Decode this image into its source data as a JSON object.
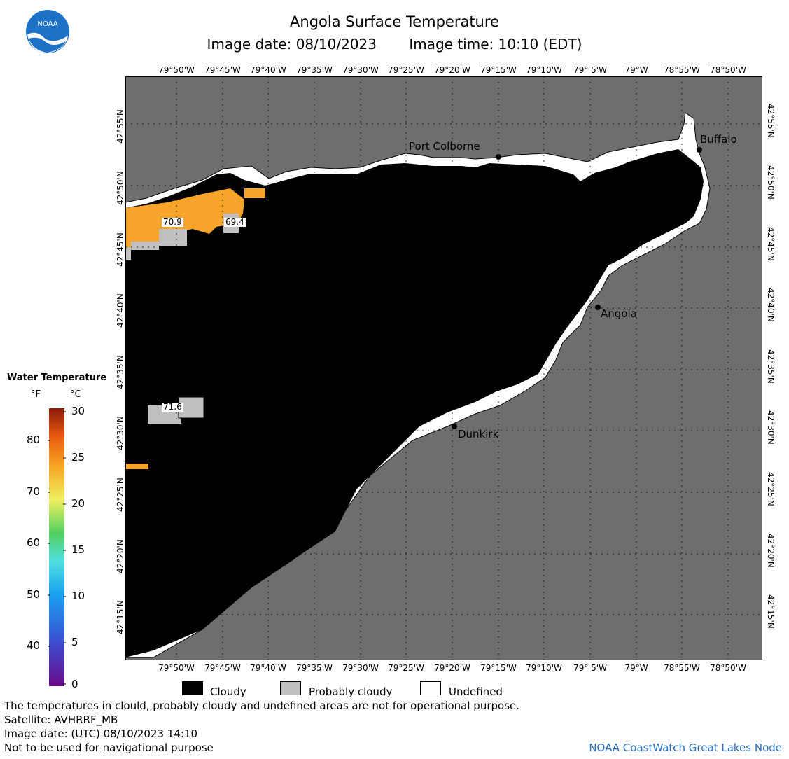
{
  "header": {
    "title": "Angola Surface Temperature",
    "image_date": "Image date: 08/10/2023",
    "image_time": "Image time: 10:10 (EDT)"
  },
  "logo": {
    "text": "NOAA",
    "icon": "noaa-logo"
  },
  "axes": {
    "lon_labels": [
      "79°50'W",
      "79°45'W",
      "79°40'W",
      "79°35'W",
      "79°30'W",
      "79°25'W",
      "79°20'W",
      "79°15'W",
      "79°10'W",
      "79° 5'W",
      "79°W",
      "78°55'W",
      "78°50'W"
    ],
    "lat_labels": [
      "42°55'N",
      "42°50'N",
      "42°45'N",
      "42°40'N",
      "42°35'N",
      "42°30'N",
      "42°25'N",
      "42°20'N",
      "42°15'N"
    ]
  },
  "places": {
    "port_colborne": "Port Colborne",
    "buffalo": "Buffalo",
    "angola": "Angola",
    "dunkirk": "Dunkirk"
  },
  "temperature_labels": [
    "70.9",
    "69.4",
    "71.6"
  ],
  "colorbar": {
    "title": "Water Temperature",
    "unit_f": "°F",
    "unit_c": "°C",
    "f_ticks": [
      "80",
      "70",
      "60",
      "50",
      "40"
    ],
    "c_ticks": [
      "30",
      "25",
      "20",
      "15",
      "10",
      "5",
      "0"
    ]
  },
  "legend": {
    "cloudy": "Cloudy",
    "probably_cloudy": "Probably cloudy",
    "undefined": "Undefined"
  },
  "footer": {
    "disclaimer": "The temperatures in clould, probably cloudy and undefined areas are not for operational purpose.",
    "satellite": "Satellite: AVHRRF_MB",
    "utc_date": "Image date: (UTC) 08/10/2023  14:10",
    "navigation": "Not to be used for navigational purpose",
    "credit": "NOAA CoastWatch Great Lakes Node"
  },
  "colors": {
    "land": "#6e6e6e",
    "cloudy": "#000000",
    "probably_cloudy": "#c0c0c0",
    "undefined": "#ffffff",
    "warm_water": "#f7a42a",
    "credit": "#2a6ebb"
  }
}
